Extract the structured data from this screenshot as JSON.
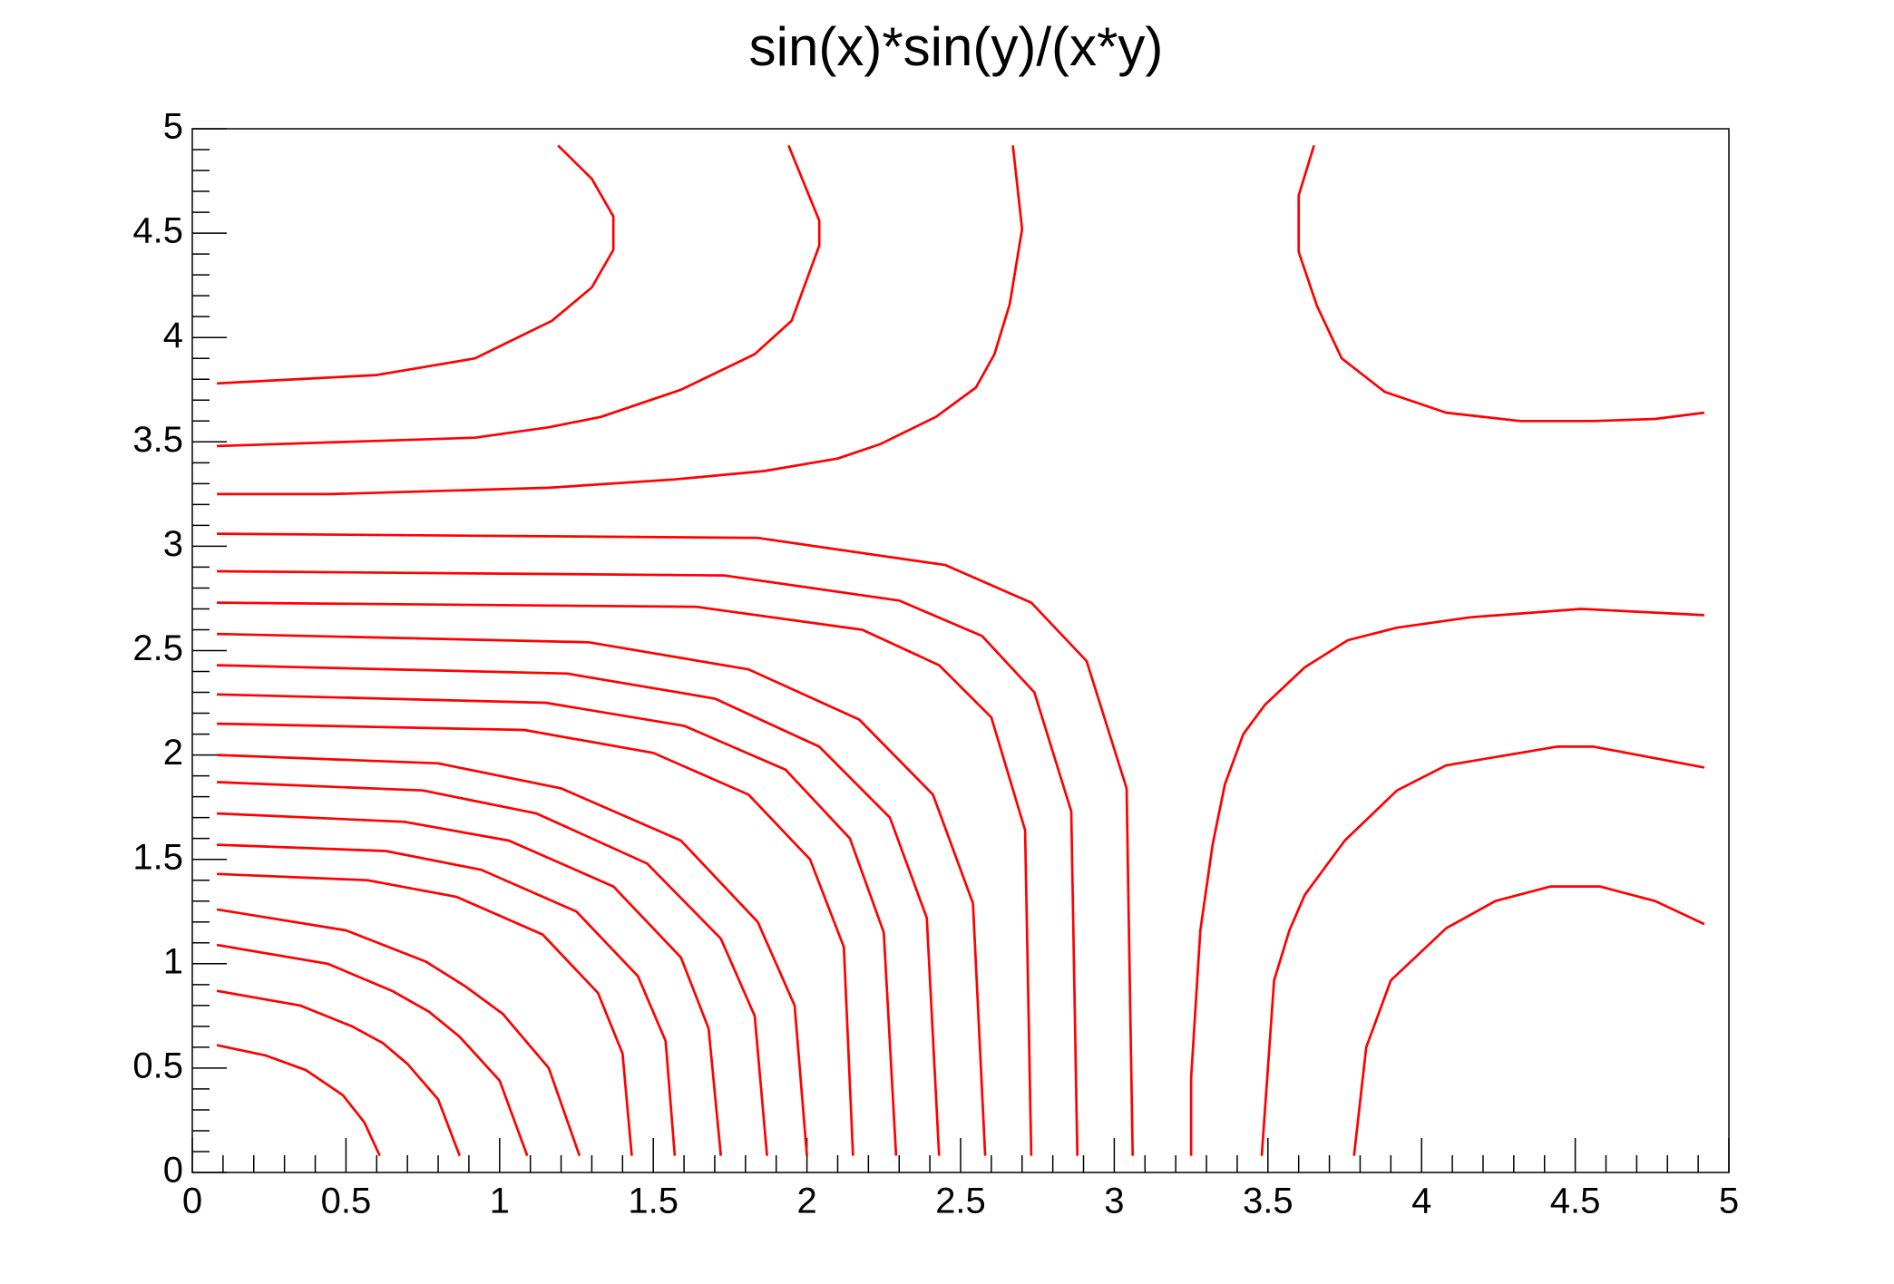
{
  "chart_data": {
    "type": "contour",
    "title": "sin(x)*sin(y)/(x*y)",
    "color": "#ff0000",
    "xlim": [
      0,
      5
    ],
    "ylim": [
      0,
      5
    ],
    "xticks": [
      0,
      0.5,
      1,
      1.5,
      2,
      2.5,
      3,
      3.5,
      4,
      4.5,
      5
    ],
    "yticks": [
      0,
      0.5,
      1,
      1.5,
      2,
      2.5,
      3,
      3.5,
      4,
      4.5,
      5
    ],
    "minor_divisions": 5,
    "lines": [
      {
        "x": [
          0.08,
          0.24,
          0.37,
          0.43,
          0.49,
          0.56,
          0.61
        ],
        "y": [
          0.61,
          0.56,
          0.49,
          0.43,
          0.37,
          0.24,
          0.08
        ]
      },
      {
        "x": [
          0.08,
          0.35,
          0.52,
          0.62,
          0.7,
          0.8,
          0.87
        ],
        "y": [
          0.87,
          0.8,
          0.7,
          0.62,
          0.52,
          0.35,
          0.08
        ]
      },
      {
        "x": [
          0.08,
          0.44,
          0.65,
          0.77,
          0.87,
          1.0,
          1.09
        ],
        "y": [
          1.09,
          1.0,
          0.87,
          0.77,
          0.65,
          0.44,
          0.08
        ]
      },
      {
        "x": [
          0.08,
          0.5,
          0.76,
          0.89,
          1.01,
          1.16,
          1.26
        ],
        "y": [
          1.26,
          1.16,
          1.01,
          0.89,
          0.76,
          0.5,
          0.08
        ]
      },
      {
        "x": [
          0.08,
          0.57,
          0.86,
          1.14,
          1.32,
          1.4,
          1.43
        ],
        "y": [
          1.43,
          1.4,
          1.32,
          1.14,
          0.86,
          0.57,
          0.08
        ]
      },
      {
        "x": [
          0.08,
          0.63,
          0.94,
          1.25,
          1.45,
          1.54,
          1.57
        ],
        "y": [
          1.57,
          1.54,
          1.45,
          1.25,
          0.94,
          0.63,
          0.08
        ]
      },
      {
        "x": [
          0.08,
          0.69,
          1.03,
          1.37,
          1.59,
          1.68,
          1.72
        ],
        "y": [
          1.72,
          1.68,
          1.59,
          1.37,
          1.03,
          0.69,
          0.08
        ]
      },
      {
        "x": [
          0.08,
          0.75,
          1.12,
          1.48,
          1.72,
          1.83,
          1.87
        ],
        "y": [
          1.87,
          1.83,
          1.72,
          1.48,
          1.12,
          0.75,
          0.08
        ]
      },
      {
        "x": [
          0.08,
          0.8,
          1.2,
          1.59,
          1.84,
          1.96,
          2.0
        ],
        "y": [
          2.0,
          1.96,
          1.84,
          1.59,
          1.2,
          0.8,
          0.08
        ]
      },
      {
        "x": [
          0.08,
          1.08,
          1.5,
          1.81,
          2.01,
          2.12,
          2.15
        ],
        "y": [
          2.15,
          2.12,
          2.01,
          1.81,
          1.5,
          1.08,
          0.08
        ]
      },
      {
        "x": [
          0.08,
          1.15,
          1.6,
          1.93,
          2.14,
          2.25,
          2.29
        ],
        "y": [
          2.29,
          2.25,
          2.14,
          1.93,
          1.6,
          1.15,
          0.08
        ]
      },
      {
        "x": [
          0.08,
          1.22,
          1.7,
          2.04,
          2.27,
          2.39,
          2.43
        ],
        "y": [
          2.43,
          2.39,
          2.27,
          2.04,
          1.7,
          1.22,
          0.08
        ]
      },
      {
        "x": [
          0.08,
          1.29,
          1.81,
          2.17,
          2.41,
          2.54,
          2.58
        ],
        "y": [
          2.58,
          2.54,
          2.41,
          2.17,
          1.81,
          1.29,
          0.08
        ]
      },
      {
        "x": [
          0.08,
          1.64,
          2.18,
          2.43,
          2.6,
          2.71,
          2.73
        ],
        "y": [
          2.73,
          2.71,
          2.6,
          2.43,
          2.18,
          1.64,
          0.08
        ]
      },
      {
        "x": [
          0.08,
          1.73,
          2.3,
          2.57,
          2.74,
          2.86,
          2.88
        ],
        "y": [
          2.88,
          2.86,
          2.74,
          2.57,
          2.3,
          1.73,
          0.08
        ]
      },
      {
        "x": [
          0.08,
          1.84,
          2.45,
          2.73,
          2.91,
          3.04,
          3.06
        ],
        "y": [
          3.06,
          3.04,
          2.91,
          2.73,
          2.45,
          1.84,
          0.08
        ]
      },
      {
        "x": [
          3.25,
          3.25,
          3.28,
          3.32,
          3.36,
          3.42,
          3.49,
          3.62,
          3.76,
          3.92,
          4.16,
          4.52,
          4.92
        ],
        "y": [
          0.08,
          0.45,
          1.16,
          1.57,
          1.86,
          2.1,
          2.24,
          2.42,
          2.55,
          2.61,
          2.66,
          2.7,
          2.67
        ]
      },
      {
        "x": [
          0.08,
          0.45,
          1.16,
          1.57,
          1.86,
          2.1,
          2.24,
          2.42,
          2.55,
          2.61,
          2.66,
          2.7,
          2.67
        ],
        "y": [
          3.25,
          3.25,
          3.28,
          3.32,
          3.36,
          3.42,
          3.49,
          3.62,
          3.76,
          3.92,
          4.16,
          4.52,
          4.92
        ]
      },
      {
        "x": [
          3.48,
          3.52,
          3.57,
          3.62,
          3.75,
          3.92,
          4.08,
          4.44,
          4.56,
          4.92
        ],
        "y": [
          0.08,
          0.92,
          1.16,
          1.33,
          1.59,
          1.83,
          1.95,
          2.04,
          2.04,
          1.94
        ]
      },
      {
        "x": [
          0.08,
          0.92,
          1.16,
          1.33,
          1.59,
          1.83,
          1.95,
          2.04,
          2.04,
          1.94
        ],
        "y": [
          3.48,
          3.52,
          3.57,
          3.62,
          3.75,
          3.92,
          4.08,
          4.44,
          4.56,
          4.92
        ]
      },
      {
        "x": [
          3.78,
          3.82,
          3.9,
          4.08,
          4.24,
          4.42,
          4.58,
          4.76,
          4.92
        ],
        "y": [
          0.08,
          0.6,
          0.92,
          1.17,
          1.3,
          1.37,
          1.37,
          1.3,
          1.19
        ]
      },
      {
        "x": [
          0.08,
          0.6,
          0.92,
          1.17,
          1.3,
          1.37,
          1.37,
          1.3,
          1.19
        ],
        "y": [
          3.78,
          3.82,
          3.9,
          4.08,
          4.24,
          4.42,
          4.58,
          4.76,
          4.92
        ]
      },
      {
        "x": [
          3.65,
          3.6,
          3.6,
          3.66,
          3.74,
          3.88,
          4.08,
          4.32,
          4.56,
          4.76,
          4.92
        ],
        "y": [
          4.92,
          4.68,
          4.41,
          4.15,
          3.9,
          3.74,
          3.64,
          3.6,
          3.6,
          3.61,
          3.64
        ]
      }
    ]
  }
}
